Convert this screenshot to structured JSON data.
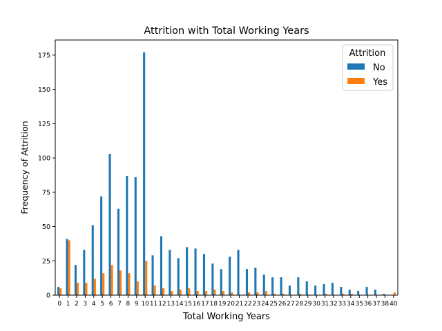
{
  "chart_data": {
    "type": "bar",
    "title": "Attrition with Total Working Years",
    "xlabel": "Total Working Years",
    "ylabel": "Frequency of Attrition",
    "ylim": [
      0,
      186
    ],
    "yticks": [
      0,
      25,
      50,
      75,
      100,
      125,
      150,
      175
    ],
    "grid": false,
    "legend": {
      "title": "Attrition",
      "position": "top-right"
    },
    "categories": [
      "0",
      "1",
      "2",
      "3",
      "4",
      "5",
      "6",
      "7",
      "8",
      "9",
      "10",
      "11",
      "12",
      "13",
      "14",
      "15",
      "16",
      "17",
      "18",
      "19",
      "20",
      "21",
      "22",
      "23",
      "24",
      "25",
      "26",
      "27",
      "28",
      "29",
      "30",
      "31",
      "32",
      "33",
      "34",
      "35",
      "36",
      "37",
      "38",
      "40"
    ],
    "series": [
      {
        "name": "No",
        "color": "#1f77b4",
        "values": [
          6,
          41,
          22,
          33,
          51,
          72,
          103,
          63,
          87,
          86,
          177,
          29,
          43,
          33,
          27,
          35,
          34,
          30,
          23,
          19,
          28,
          33,
          19,
          20,
          15,
          13,
          13,
          7,
          13,
          10,
          7,
          8,
          9,
          6,
          4,
          3,
          6,
          4,
          1,
          0
        ]
      },
      {
        "name": "Yes",
        "color": "#ff7f0e",
        "values": [
          5,
          40,
          9,
          9,
          12,
          16,
          22,
          18,
          16,
          10,
          25,
          7,
          5,
          3,
          4,
          5,
          3,
          3,
          4,
          3,
          2,
          0,
          2,
          2,
          3,
          1,
          1,
          0,
          1,
          0,
          0,
          1,
          0,
          1,
          1,
          0,
          0,
          0,
          0,
          2
        ]
      }
    ]
  }
}
